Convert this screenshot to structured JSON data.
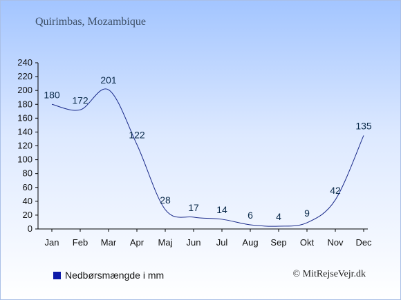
{
  "title": "Quirimbas, Mozambique",
  "legend": {
    "label": "Nedbørsmængde i mm",
    "color": "#0d1aa8"
  },
  "credit": "© MitRejseVejr.dk",
  "colors": {
    "line": "#1a2a8a",
    "label": "#0a2a4a",
    "axis": "#000000"
  },
  "chart_data": {
    "type": "line",
    "title": "Quirimbas, Mozambique",
    "xlabel": "",
    "ylabel": "",
    "categories": [
      "Jan",
      "Feb",
      "Mar",
      "Apr",
      "Maj",
      "Jun",
      "Jul",
      "Aug",
      "Sep",
      "Okt",
      "Nov",
      "Dec"
    ],
    "series": [
      {
        "name": "Nedbørsmængde i mm",
        "values": [
          180,
          172,
          201,
          122,
          28,
          17,
          14,
          6,
          4,
          9,
          42,
          135
        ]
      }
    ],
    "ylim": [
      0,
      240
    ],
    "yticks": [
      0,
      20,
      40,
      60,
      80,
      100,
      120,
      140,
      160,
      180,
      200,
      220,
      240
    ],
    "grid": false,
    "legend_position": "bottom-left"
  }
}
